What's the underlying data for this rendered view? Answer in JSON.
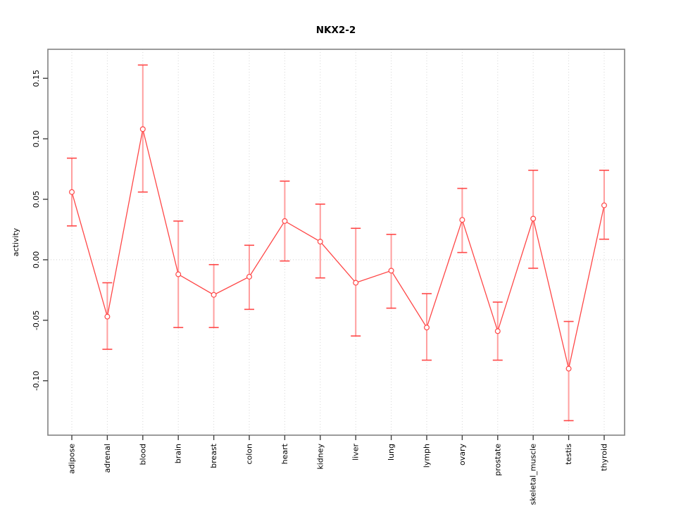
{
  "figure": {
    "background": "#ffffff"
  },
  "chart_data": {
    "type": "line",
    "title": "NKX2-2",
    "xlabel": "",
    "ylabel": "activity",
    "legend": "none",
    "grid": "dotted vertical gridline at every category; dotted horizontal line at y=0",
    "marker": "open-circle",
    "error_bars": true,
    "categories": [
      "adipose",
      "adrenal",
      "blood",
      "brain",
      "breast",
      "colon",
      "heart",
      "kidney",
      "liver",
      "lung",
      "lymph",
      "ovary",
      "prostate",
      "skeletal_muscle",
      "testis",
      "thyroid"
    ],
    "series": [
      {
        "name": "activity",
        "values": [
          0.056,
          -0.047,
          0.108,
          -0.012,
          -0.029,
          -0.014,
          0.032,
          0.015,
          -0.019,
          -0.009,
          -0.056,
          0.033,
          -0.059,
          0.034,
          -0.09,
          0.045
        ],
        "upper": [
          0.084,
          -0.019,
          0.161,
          0.032,
          -0.004,
          0.012,
          0.065,
          0.046,
          0.026,
          0.021,
          -0.028,
          0.059,
          -0.035,
          0.074,
          -0.051,
          0.074
        ],
        "lower": [
          0.028,
          -0.074,
          0.056,
          -0.056,
          -0.056,
          -0.041,
          -0.001,
          -0.015,
          -0.063,
          -0.04,
          -0.083,
          0.006,
          -0.083,
          -0.007,
          -0.133,
          0.017
        ]
      }
    ],
    "yticks": [
      -0.1,
      -0.05,
      0.0,
      0.05,
      0.1,
      0.15
    ],
    "ytick_labels": [
      "-0.10",
      "-0.05",
      "0.00",
      "0.05",
      "0.10",
      "0.15"
    ],
    "ylim": [
      -0.145,
      0.174
    ],
    "colors": {
      "line": "#ff4747",
      "error_line": "#ff9f9f",
      "marker_fill": "#ffffff",
      "gridline": "#d6d6d6",
      "zero_line": "#cfcfcf",
      "frame": "#828282",
      "tick": "#404040",
      "text": "#000000"
    }
  }
}
